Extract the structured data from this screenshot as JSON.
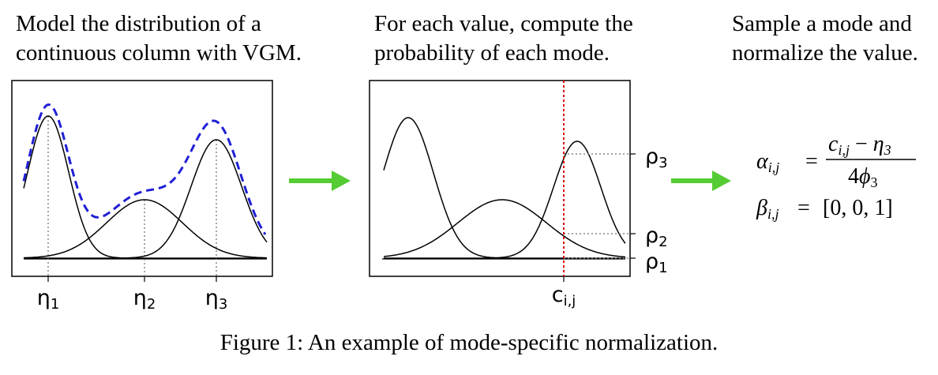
{
  "steps": [
    {
      "line1": "Model the distribution of a",
      "line2": "continuous column with VGM."
    },
    {
      "line1": "For each value, compute the",
      "line2": "probability of each mode."
    },
    {
      "line1": "Sample a mode and",
      "line2": "normalize the value."
    }
  ],
  "panel1": {
    "modes": [
      {
        "label": "η",
        "sub": "1"
      },
      {
        "label": "η",
        "sub": "2"
      },
      {
        "label": "η",
        "sub": "3"
      }
    ]
  },
  "panel2": {
    "probs": [
      {
        "label": "ρ",
        "sub": "3"
      },
      {
        "label": "ρ",
        "sub": "2"
      },
      {
        "label": "ρ",
        "sub": "1"
      }
    ],
    "value": {
      "label": "c",
      "sub": "i,j"
    }
  },
  "formula": {
    "alpha_lhs": "α",
    "alpha_sub": "i,j",
    "eq": "=",
    "num_c": "c",
    "num_c_sub": "i,j",
    "num_minus": " − ",
    "num_eta": "η",
    "num_eta_sub": "3",
    "den_coef": "4",
    "den_phi": "ϕ",
    "den_phi_sub": "3",
    "beta_lhs": "β",
    "beta_sub": "i,j",
    "beta_rhs": "[0, 0, 1]"
  },
  "caption": "Figure 1: An example of mode-specific normalization.",
  "colors": {
    "curve": "#000000",
    "mixture": "#1f1fd6",
    "value_line": "#e00000",
    "arrow": "#55cc33",
    "guide": "#888888"
  }
}
